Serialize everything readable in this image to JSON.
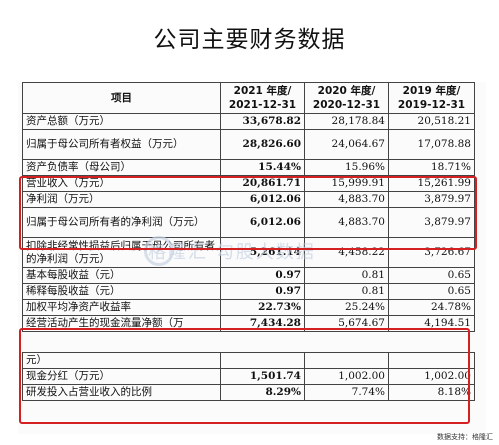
{
  "title": "公司主要财务数据",
  "table": {
    "header": {
      "item": "项目",
      "col2021": [
        "2021 年度/",
        "2021-12-31"
      ],
      "col2020": [
        "2020 年度/",
        "2020-12-31"
      ],
      "col2019": [
        "2019 年度/",
        "2019-12-31"
      ]
    },
    "rows": [
      {
        "label": "资产总额（万元）",
        "v2021": "33,678.82",
        "v2020": "28,178.84",
        "v2019": "20,518.21"
      },
      {
        "label": "归属于母公司所有者权益（万元）",
        "v2021": "28,826.60",
        "v2020": "24,064.67",
        "v2019": "17,078.88"
      },
      {
        "label": "资产负债率（母公司）",
        "v2021": "15.44%",
        "v2020": "15.96%",
        "v2019": "18.71%"
      },
      {
        "label": "营业收入（万元）",
        "v2021": "20,861.71",
        "v2020": "15,999.91",
        "v2019": "15,261.99"
      },
      {
        "label": "净利润（万元）",
        "v2021": "6,012.06",
        "v2020": "4,883.70",
        "v2019": "3,879.97"
      },
      {
        "label": "归属于母公司所有者的净利润（万元）",
        "v2021": "6,012.06",
        "v2020": "4,883.70",
        "v2019": "3,879.97"
      },
      {
        "label": "扣除非经常性损益后归属于母公司所有者的净利润（万元）",
        "v2021": "5,261.14",
        "v2020": "4,458.22",
        "v2019": "3,726.67"
      },
      {
        "label": "基本每股收益（元）",
        "v2021": "0.97",
        "v2020": "0.81",
        "v2019": "0.65"
      },
      {
        "label": "稀释每股收益（元）",
        "v2021": "0.97",
        "v2020": "0.81",
        "v2019": "0.65"
      },
      {
        "label": "加权平均净资产收益率",
        "v2021": "22.73%",
        "v2020": "25.24%",
        "v2019": "24.78%"
      },
      {
        "label": "经营活动产生的现金流量净额（万",
        "v2021": "7,434.28",
        "v2020": "5,674.67",
        "v2019": "4,194.51"
      },
      {
        "label": "元）",
        "v2021": "",
        "v2020": "",
        "v2019": ""
      },
      {
        "label": "现金分红（万元）",
        "v2021": "1,501.74",
        "v2020": "1,002.00",
        "v2019": "1,002.00"
      },
      {
        "label": "研发投入占营业收入的比例",
        "v2021": "8.29%",
        "v2020": "7.74%",
        "v2019": "8.18%"
      }
    ]
  },
  "watermark": "格隆汇   勾股大数据",
  "footer": "数据支持：格隆汇",
  "colors": {
    "highlight": "#d42020"
  }
}
